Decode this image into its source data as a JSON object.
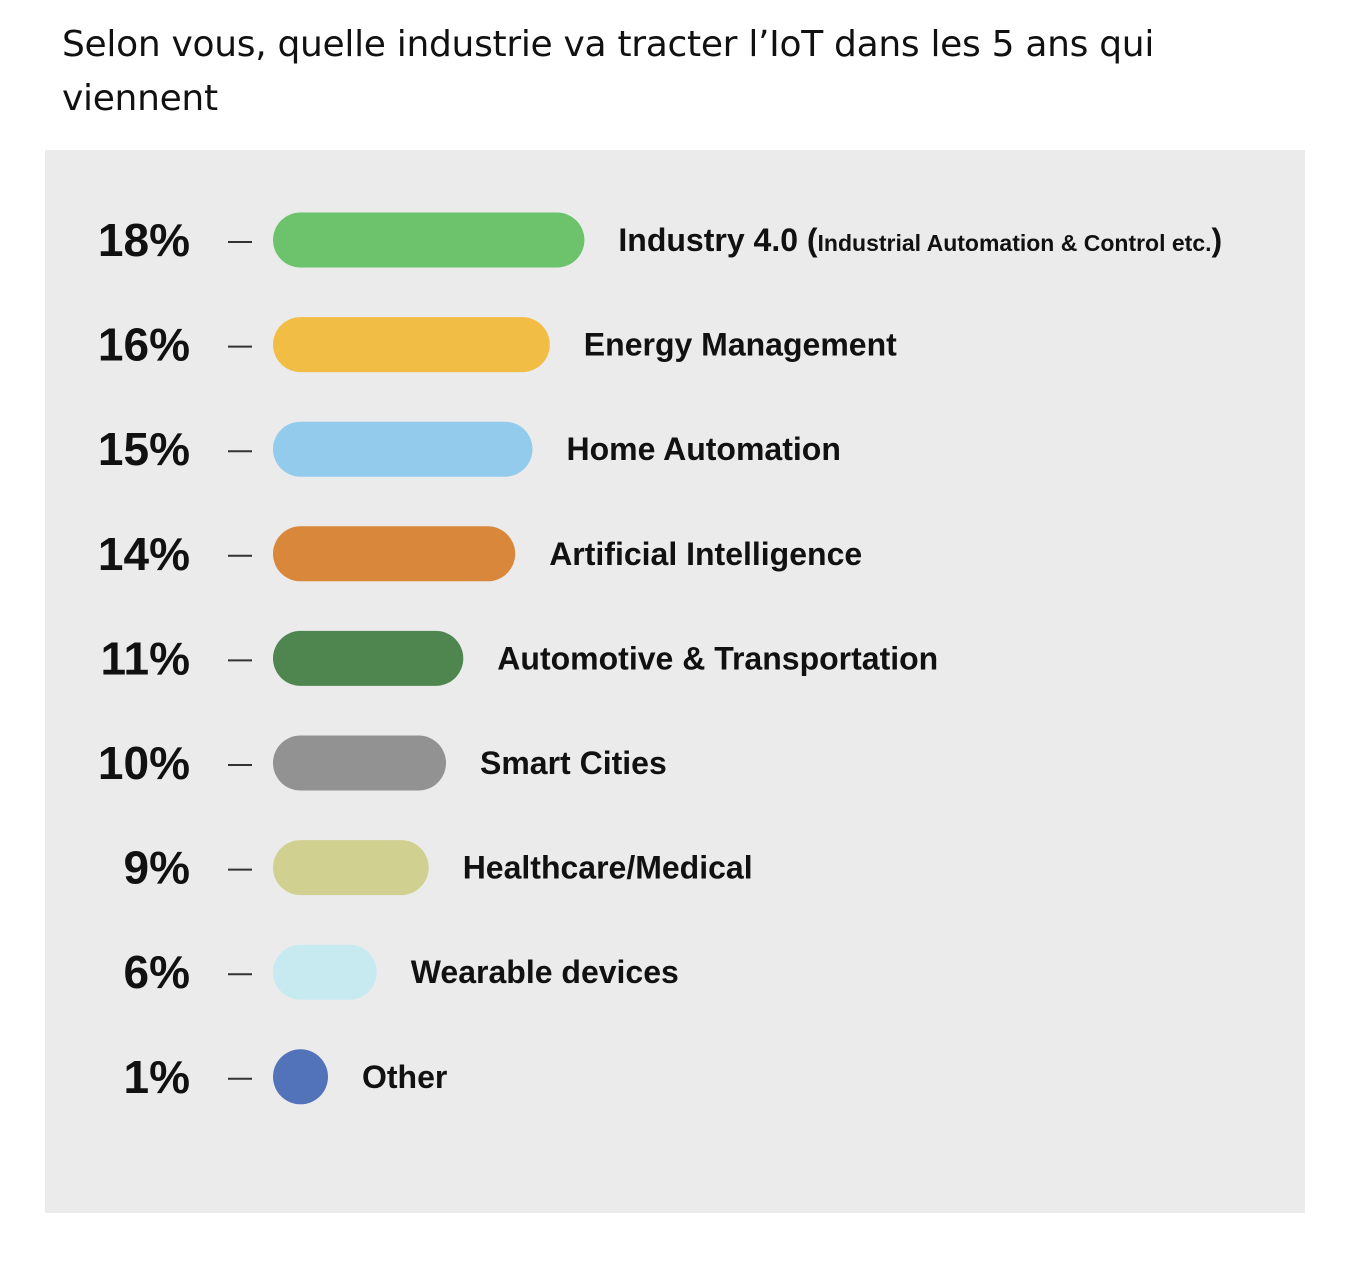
{
  "page": {
    "title": "Selon vous, quelle industrie va tracter l’IoT dans les 5 ans qui viennent"
  },
  "chart_data": {
    "type": "bar",
    "orientation": "horizontal",
    "unit": "%",
    "categories": [
      "Industry 4.0",
      "Energy Management",
      "Home Automation",
      "Artificial Intelligence",
      "Automotive & Transportation",
      "Smart Cities",
      "Healthcare/Medical",
      "Wearable devices",
      "Other"
    ],
    "category_notes": [
      "Industrial Automation & Control etc.",
      "",
      "",
      "",
      "",
      "",
      "",
      "",
      ""
    ],
    "values": [
      18,
      16,
      15,
      14,
      11,
      10,
      9,
      6,
      1
    ],
    "value_labels": [
      "18%",
      "16%",
      "15%",
      "14%",
      "11%",
      "10%",
      "9%",
      "6%",
      "1%"
    ],
    "colors": [
      "#6cc36c",
      "#f2bd45",
      "#92cbec",
      "#d9883b",
      "#4f8650",
      "#929292",
      "#d0d190",
      "#c7eaf1",
      "#5273b9"
    ],
    "background": "#ebebeb",
    "grid": false,
    "legend": "none"
  }
}
